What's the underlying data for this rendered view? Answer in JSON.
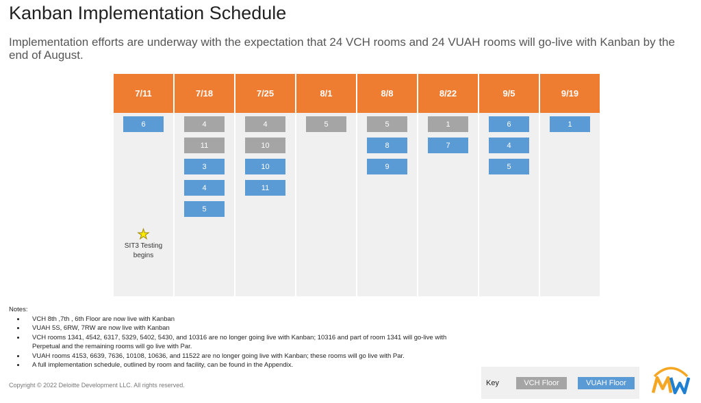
{
  "title": "Kanban Implementation Schedule",
  "subtitle": "Implementation efforts are underway with the expectation that 24 VCH rooms and 24 VUAH rooms will go-live with Kanban by the end of August.",
  "colors": {
    "header": "#ef7d31",
    "vch": "#a5a5a5",
    "vuah": "#5b9bd5"
  },
  "columns": [
    {
      "date": "7/11",
      "items": [
        {
          "v": "6",
          "t": "vuah"
        }
      ],
      "milestone": "SIT3 Testing begins"
    },
    {
      "date": "7/18",
      "items": [
        {
          "v": "4",
          "t": "vch"
        },
        {
          "v": "11",
          "t": "vch"
        },
        {
          "v": "3",
          "t": "vuah"
        },
        {
          "v": "4",
          "t": "vuah"
        },
        {
          "v": "5",
          "t": "vuah"
        }
      ]
    },
    {
      "date": "7/25",
      "items": [
        {
          "v": "4",
          "t": "vch"
        },
        {
          "v": "10",
          "t": "vch"
        },
        {
          "v": "10",
          "t": "vuah"
        },
        {
          "v": "11",
          "t": "vuah"
        }
      ]
    },
    {
      "date": "8/1",
      "items": [
        {
          "v": "5",
          "t": "vch"
        }
      ]
    },
    {
      "date": "8/8",
      "items": [
        {
          "v": "5",
          "t": "vch"
        },
        {
          "v": "8",
          "t": "vuah"
        },
        {
          "v": "9",
          "t": "vuah"
        }
      ]
    },
    {
      "date": "8/22",
      "items": [
        {
          "v": "1",
          "t": "vch"
        },
        {
          "v": "7",
          "t": "vuah"
        }
      ]
    },
    {
      "date": "9/5",
      "items": [
        {
          "v": "6",
          "t": "vuah"
        },
        {
          "v": "4",
          "t": "vuah"
        },
        {
          "v": "5",
          "t": "vuah"
        }
      ]
    },
    {
      "date": "9/19",
      "items": [
        {
          "v": "1",
          "t": "vuah"
        }
      ]
    }
  ],
  "notes": {
    "heading": "Notes:",
    "items": [
      "VCH 8th ,7th , 6th Floor are now live with Kanban",
      "VUAH 5S, 6RW, 7RW are now live with Kanban",
      "VCH rooms 1341, 4542, 6317, 5329, 5402, 5430, and 10316 are no longer going live with Kanban; 10316 and part of room 1341 will go-live with Perpetual and the remaining rooms will go live with Par.",
      "VUAH rooms 4153, 6639, 7636, 10108, 10636, and 11522 are no longer going live with Kanban; these rooms will go live with Par.",
      "A full implementation schedule, outlined by room and facility, can be found in the Appendix."
    ]
  },
  "copyright": "Copyright © 2022 Deloitte Development LLC. All rights reserved.",
  "key": {
    "label": "Key",
    "vch": "VCH Floor",
    "vuah": "VUAH Floor"
  },
  "logo": "MW"
}
